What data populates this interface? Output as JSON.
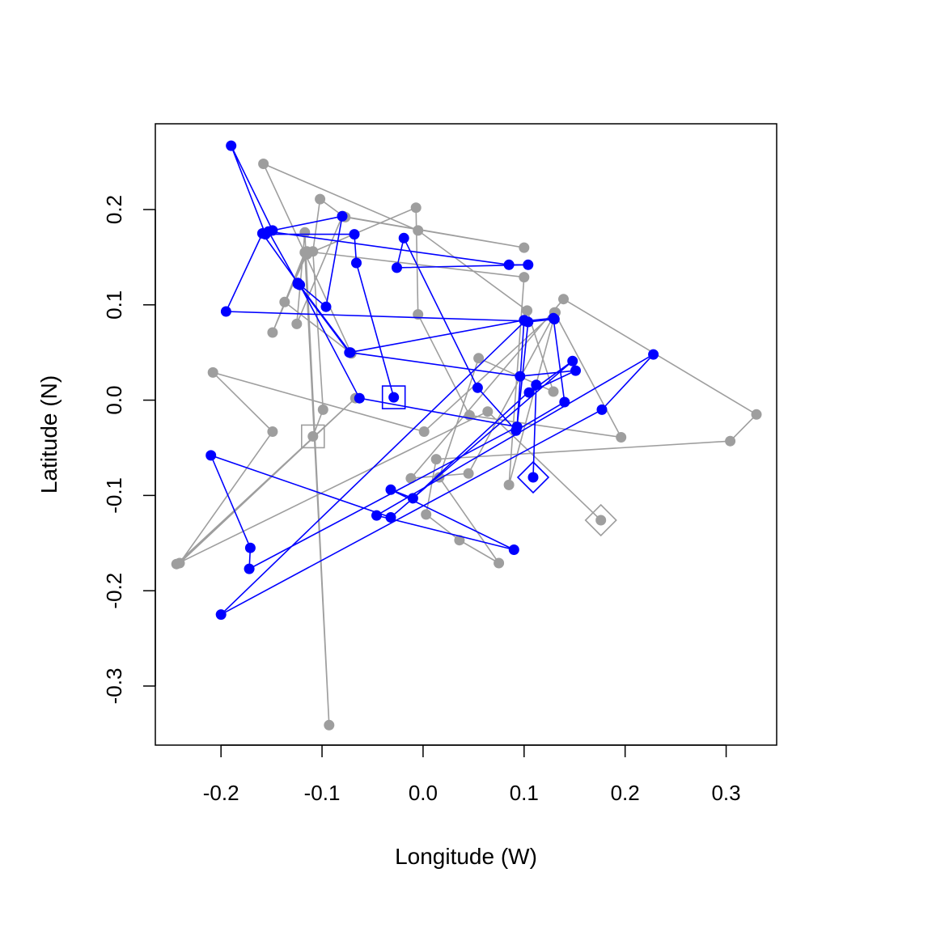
{
  "chart_data": {
    "type": "scatter",
    "title": "",
    "xlabel": "Longitude (W)",
    "ylabel": "Latitude (N)",
    "xlim": [
      -0.265,
      0.35
    ],
    "ylim": [
      -0.362,
      0.29
    ],
    "xticks": [
      -0.2,
      -0.1,
      0.0,
      0.1,
      0.2,
      0.3
    ],
    "xtick_labels": [
      "-0.2",
      "-0.1",
      "0.0",
      "0.1",
      "0.2",
      "0.3"
    ],
    "yticks": [
      -0.3,
      -0.2,
      -0.1,
      0.0,
      0.1,
      0.2
    ],
    "ytick_labels": [
      "-0.3",
      "-0.2",
      "-0.1",
      "0.0",
      "0.1",
      "0.2"
    ],
    "grid": false,
    "legend": "none",
    "series": [
      {
        "color": "#9e9e9e",
        "mode": "lines+markers",
        "start_marker": "square",
        "end_marker": "diamond",
        "points": [
          [
            -0.109,
            -0.038
          ],
          [
            -0.099,
            -0.01
          ],
          [
            -0.109,
            0.156
          ],
          [
            -0.102,
            0.211
          ],
          [
            -0.079,
            0.193
          ],
          [
            -0.077,
            0.192
          ],
          [
            0.1,
            0.16
          ],
          [
            -0.08,
            0.193
          ],
          [
            -0.125,
            0.08
          ],
          [
            -0.117,
            0.176
          ],
          [
            -0.093,
            -0.341
          ],
          [
            -0.117,
            0.155
          ],
          [
            -0.149,
            0.071
          ],
          [
            -0.115,
            0.156
          ],
          [
            0.1,
            0.129
          ],
          [
            0.085,
            -0.089
          ],
          [
            0.131,
            0.092
          ],
          [
            0.045,
            -0.077
          ],
          [
            -0.012,
            -0.082
          ],
          [
            0.139,
            0.106
          ],
          [
            0.33,
            -0.015
          ],
          [
            0.304,
            -0.043
          ],
          [
            0.013,
            -0.062
          ],
          [
            0.003,
            -0.12
          ],
          [
            0.036,
            -0.147
          ],
          [
            0.075,
            -0.171
          ],
          [
            0.016,
            -0.081
          ],
          [
            0.055,
            0.044
          ],
          [
            0.129,
            0.009
          ],
          [
            0.103,
            0.094
          ],
          [
            -0.005,
            0.178
          ],
          [
            -0.158,
            0.248
          ],
          [
            -0.071,
            0.049
          ],
          [
            -0.137,
            0.103
          ],
          [
            -0.115,
            0.153
          ],
          [
            -0.007,
            0.202
          ],
          [
            -0.005,
            0.09
          ],
          [
            0.046,
            -0.016
          ],
          [
            0.196,
            -0.039
          ],
          [
            0.13,
            0.092
          ],
          [
            0.001,
            -0.033
          ],
          [
            -0.208,
            0.029
          ],
          [
            -0.149,
            -0.033
          ],
          [
            -0.241,
            -0.171
          ],
          [
            -0.067,
            0.002
          ],
          [
            -0.244,
            -0.172
          ],
          [
            0.064,
            -0.012
          ],
          [
            0.176,
            -0.126
          ]
        ]
      },
      {
        "color": "#0000ff",
        "mode": "lines+markers",
        "start_marker": "square",
        "end_marker": "diamond",
        "points": [
          [
            -0.029,
            0.003
          ],
          [
            -0.066,
            0.144
          ],
          [
            -0.068,
            0.174
          ],
          [
            -0.156,
            0.174
          ],
          [
            -0.19,
            0.267
          ],
          [
            -0.149,
            0.178
          ],
          [
            -0.08,
            0.193
          ],
          [
            -0.096,
            0.098
          ],
          [
            -0.122,
            0.121
          ],
          [
            -0.063,
            0.002
          ],
          [
            0.093,
            -0.028
          ],
          [
            0.1,
            0.084
          ],
          [
            -0.073,
            0.05
          ],
          [
            -0.124,
            0.122
          ],
          [
            -0.153,
            0.177
          ],
          [
            0.085,
            0.142
          ],
          [
            0.104,
            0.142
          ],
          [
            -0.026,
            0.139
          ],
          [
            -0.019,
            0.17
          ],
          [
            0.054,
            0.013
          ],
          [
            0.092,
            -0.032
          ],
          [
            0.14,
            -0.002
          ],
          [
            0.129,
            0.086
          ],
          [
            0.101,
            0.083
          ],
          [
            -0.195,
            0.093
          ],
          [
            -0.159,
            0.175
          ],
          [
            -0.124,
            0.123
          ],
          [
            -0.072,
            0.05
          ],
          [
            0.096,
            0.025
          ],
          [
            0.151,
            0.031
          ],
          [
            0.105,
            0.008
          ],
          [
            0.148,
            0.041
          ],
          [
            -0.032,
            -0.123
          ],
          [
            -0.21,
            -0.058
          ],
          [
            -0.171,
            -0.155
          ],
          [
            -0.172,
            -0.177
          ],
          [
            0.093,
            -0.028
          ],
          [
            0.104,
            0.082
          ],
          [
            0.13,
            0.085
          ],
          [
            0.101,
            0.083
          ],
          [
            -0.2,
            -0.225
          ],
          [
            0.177,
            -0.01
          ],
          [
            0.228,
            0.048
          ],
          [
            -0.046,
            -0.121
          ],
          [
            0.09,
            -0.157
          ],
          [
            -0.032,
            -0.094
          ],
          [
            -0.01,
            -0.103
          ],
          [
            0.112,
            0.016
          ],
          [
            0.109,
            -0.081
          ]
        ]
      }
    ]
  }
}
